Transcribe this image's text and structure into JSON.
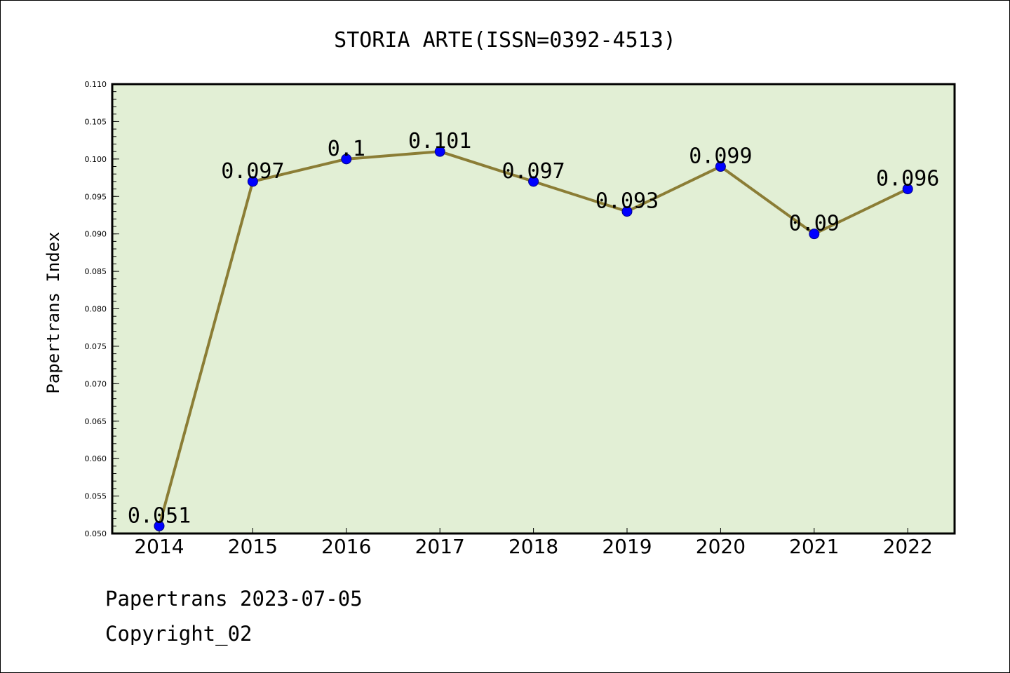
{
  "chart_data": {
    "type": "line",
    "title": "STORIA ARTE(ISSN=0392-4513)",
    "ylabel": "Papertrans Index",
    "xlabel": "",
    "categories": [
      "2014",
      "2015",
      "2016",
      "2017",
      "2018",
      "2019",
      "2020",
      "2021",
      "2022"
    ],
    "values": [
      0.051,
      0.097,
      0.1,
      0.101,
      0.097,
      0.093,
      0.099,
      0.09,
      0.096
    ],
    "data_labels": [
      "0.051",
      "0.097",
      "0.1",
      "0.101",
      "0.097",
      "0.093",
      "0.099",
      "0.09",
      "0.096"
    ],
    "ylim": [
      0.05,
      0.11
    ],
    "yticks": [
      "0.050",
      "0.055",
      "0.060",
      "0.065",
      "0.070",
      "0.075",
      "0.080",
      "0.085",
      "0.090",
      "0.095",
      "0.100",
      "0.105",
      "0.110"
    ],
    "grid": false,
    "legend": "none",
    "colors": {
      "plot_background": "#e2efd5",
      "line": "#8b7d35",
      "marker": "#0000ff"
    }
  },
  "footer": {
    "line1": "Papertrans 2023-07-05",
    "line2": "Copyright_02"
  }
}
